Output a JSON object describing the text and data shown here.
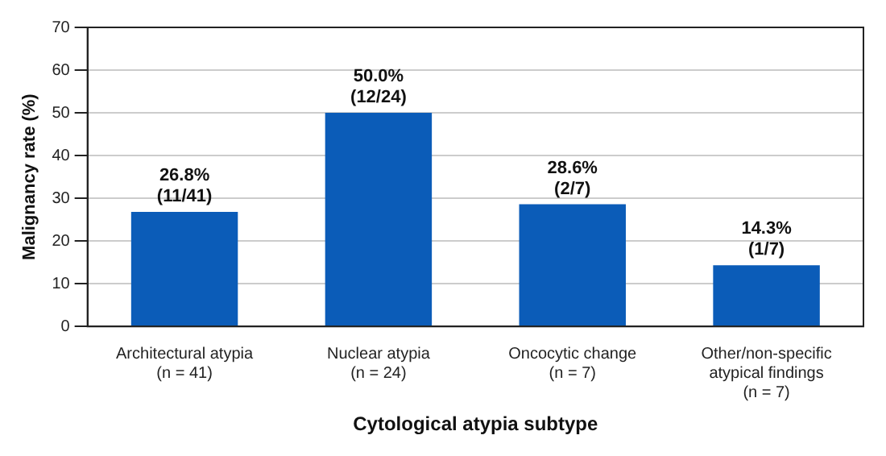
{
  "chart_data": {
    "type": "bar",
    "xlabel": "Cytological atypia subtype",
    "ylabel": "Malignancy rate (%)",
    "categories": [
      "Architectural atypia\n(n = 41)",
      "Nuclear atypia\n(n = 24)",
      "Oncocytic change\n(n = 7)",
      "Other/non-specific\natypical findings\n(n = 7)"
    ],
    "values": [
      26.8,
      50.0,
      28.6,
      14.3
    ],
    "value_labels": [
      "26.8%\n(11/41)",
      "50.0%\n(12/24)",
      "28.6%\n(2/7)",
      "14.3%\n(1/7)"
    ],
    "color": "#0b5cb8",
    "ylim": [
      0,
      70
    ],
    "yticks": [
      0,
      10,
      20,
      30,
      40,
      50,
      60,
      70
    ],
    "grid": "y"
  }
}
